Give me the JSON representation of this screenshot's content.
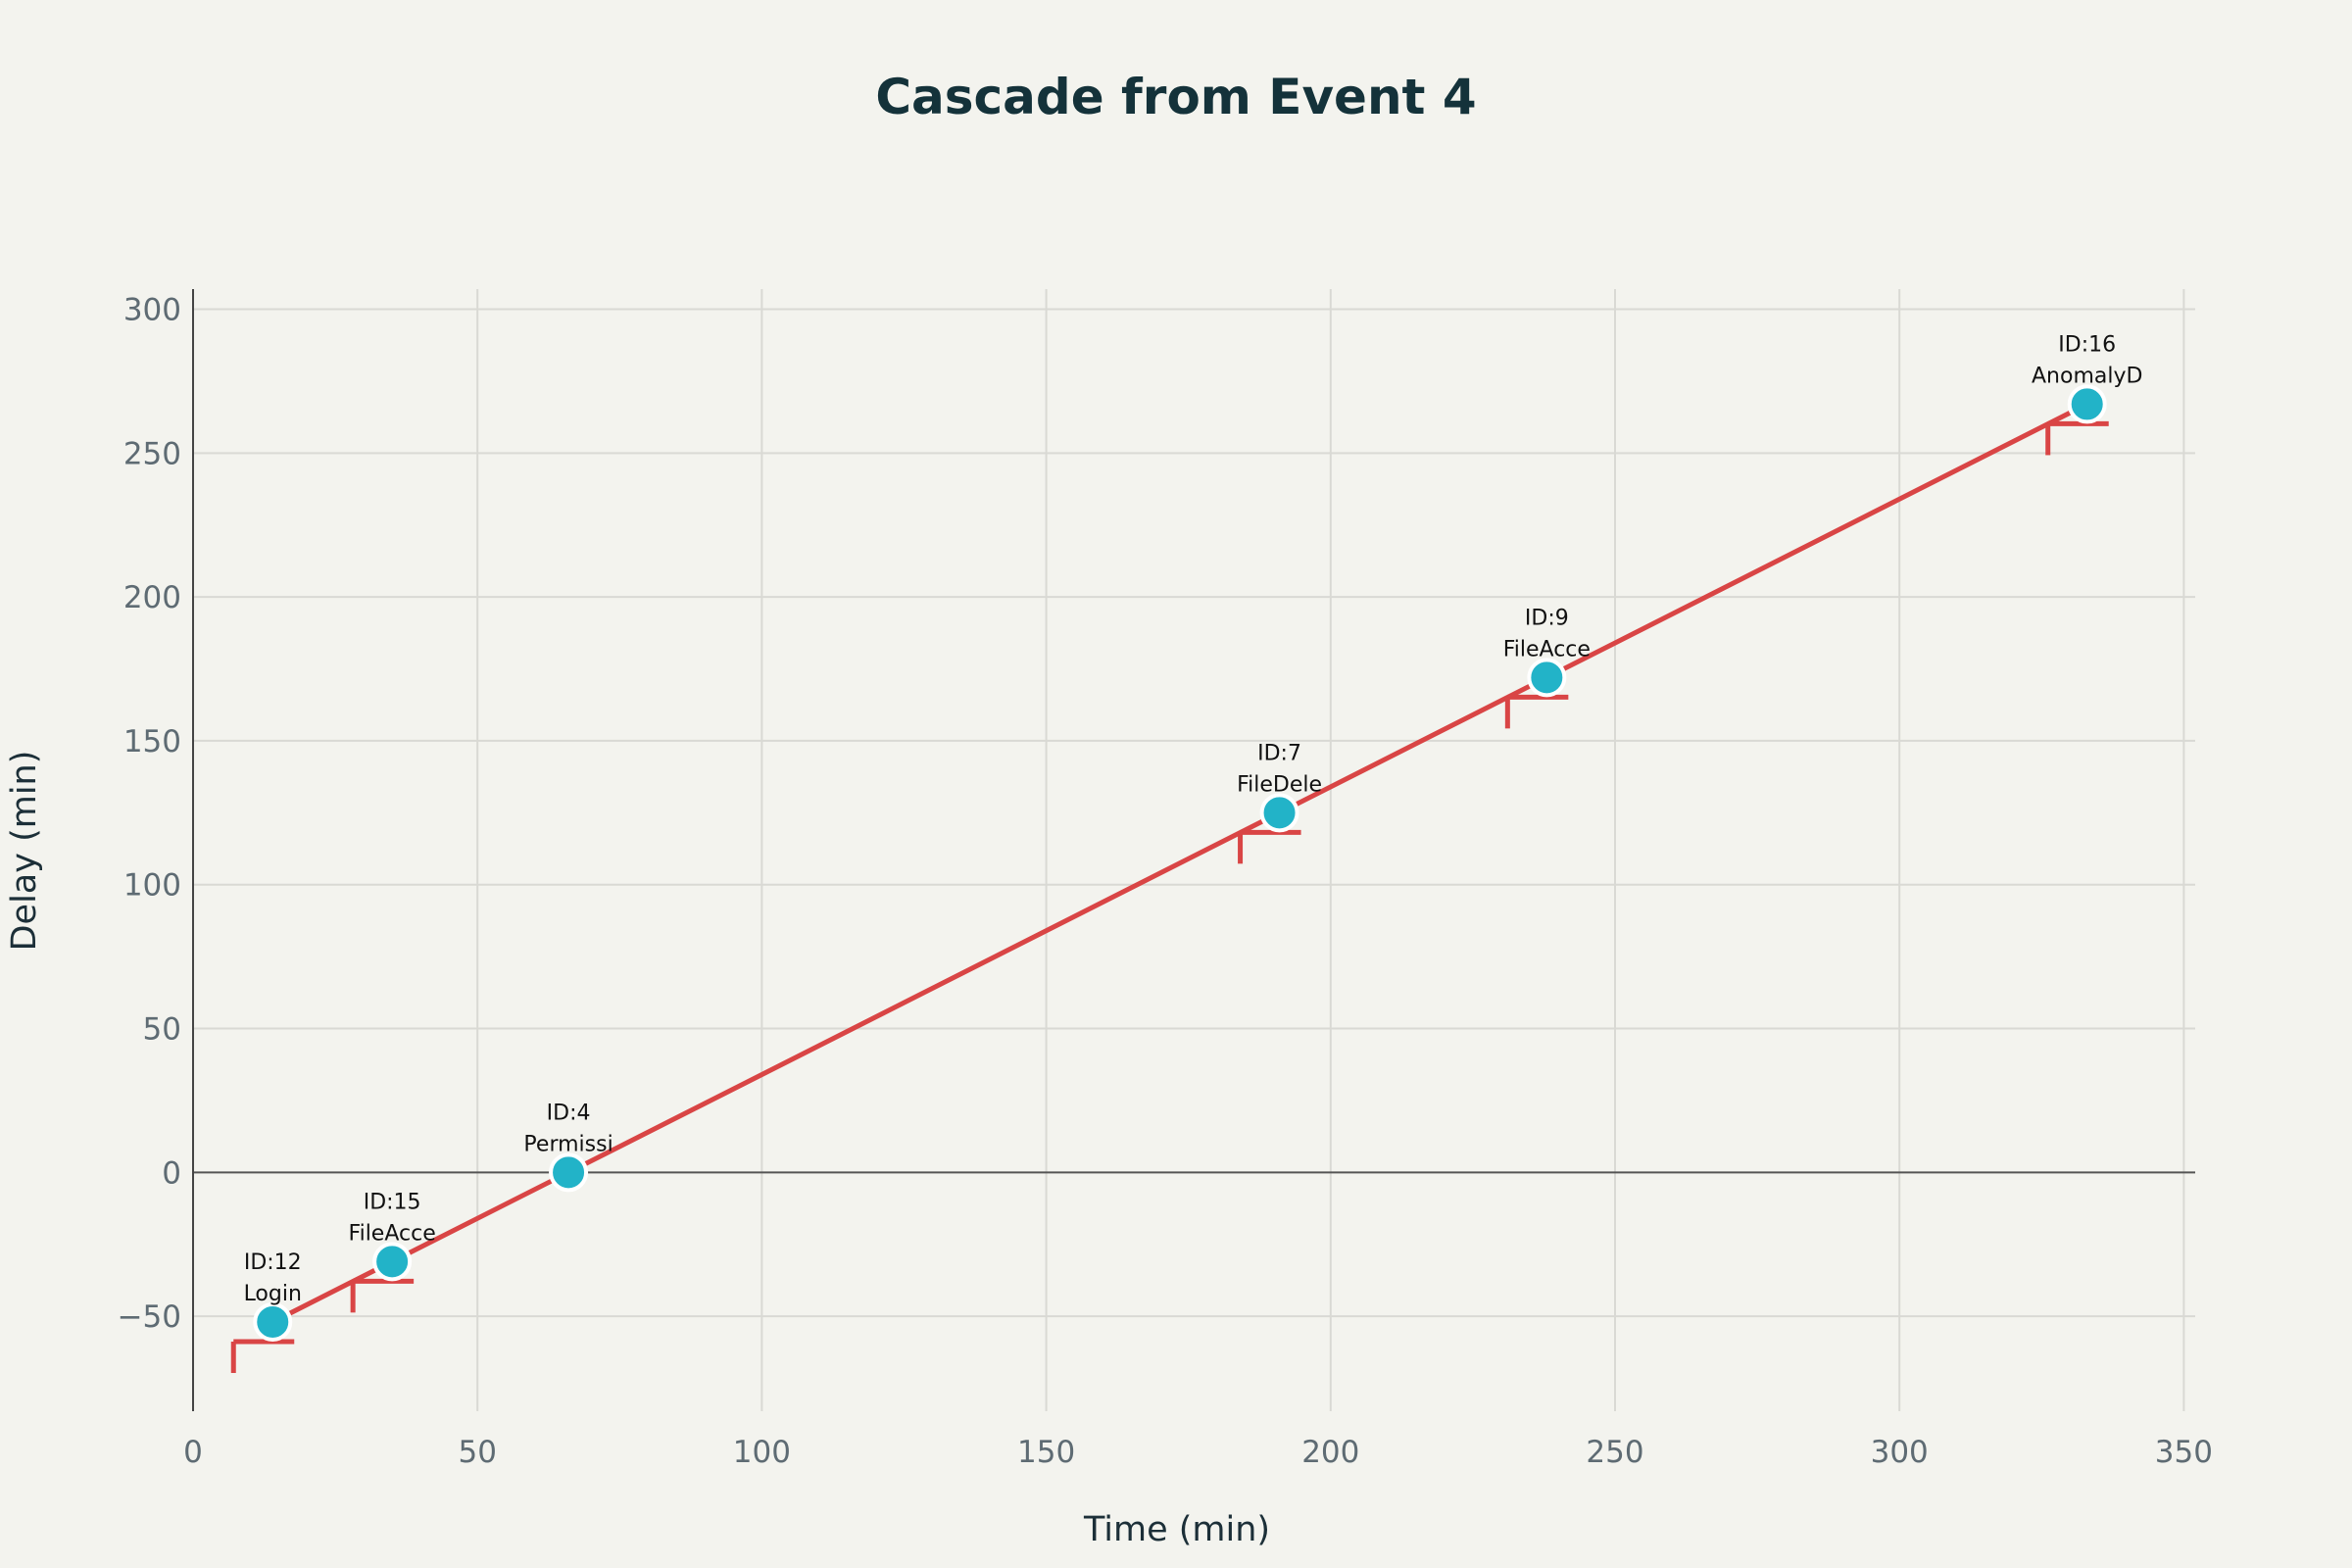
{
  "chart_data": {
    "type": "scatter",
    "title": "Cascade from Event 4",
    "xlabel": "Time (min)",
    "ylabel": "Delay (min)",
    "xlim": [
      0,
      352
    ],
    "ylim": [
      -83,
      307
    ],
    "x_ticks": [
      0,
      50,
      100,
      150,
      200,
      250,
      300,
      350
    ],
    "y_ticks": [
      -50,
      0,
      50,
      100,
      150,
      200,
      250,
      300
    ],
    "x_tick_labels": [
      "0",
      "50",
      "100",
      "150",
      "200",
      "250",
      "300",
      "350"
    ],
    "y_tick_labels": [
      "−50",
      "0",
      "50",
      "100",
      "150",
      "200",
      "250",
      "300"
    ],
    "grid": true,
    "points": [
      {
        "x": 14,
        "y": -52,
        "id_label": "ID:12",
        "type_label": "Login"
      },
      {
        "x": 35,
        "y": -31,
        "id_label": "ID:15",
        "type_label": "FileAcce"
      },
      {
        "x": 66,
        "y": 0,
        "id_label": "ID:4",
        "type_label": "Permissi"
      },
      {
        "x": 191,
        "y": 125,
        "id_label": "ID:7",
        "type_label": "FileDele"
      },
      {
        "x": 238,
        "y": 172,
        "id_label": "ID:9",
        "type_label": "FileAcce"
      },
      {
        "x": 333,
        "y": 267,
        "id_label": "ID:16",
        "type_label": "AnomalyD"
      }
    ],
    "colors": {
      "background": "#f3f3ee",
      "grid": "#d9d9d4",
      "zero_line": "#555555",
      "axis_line": "#444444",
      "line": "#d94545",
      "marker_fill": "#22b3c8",
      "marker_stroke": "#ffffff",
      "title": "#14323a",
      "axis_title": "#1c2f38",
      "tick_label": "#5e6b73",
      "point_label": "#111111"
    }
  }
}
